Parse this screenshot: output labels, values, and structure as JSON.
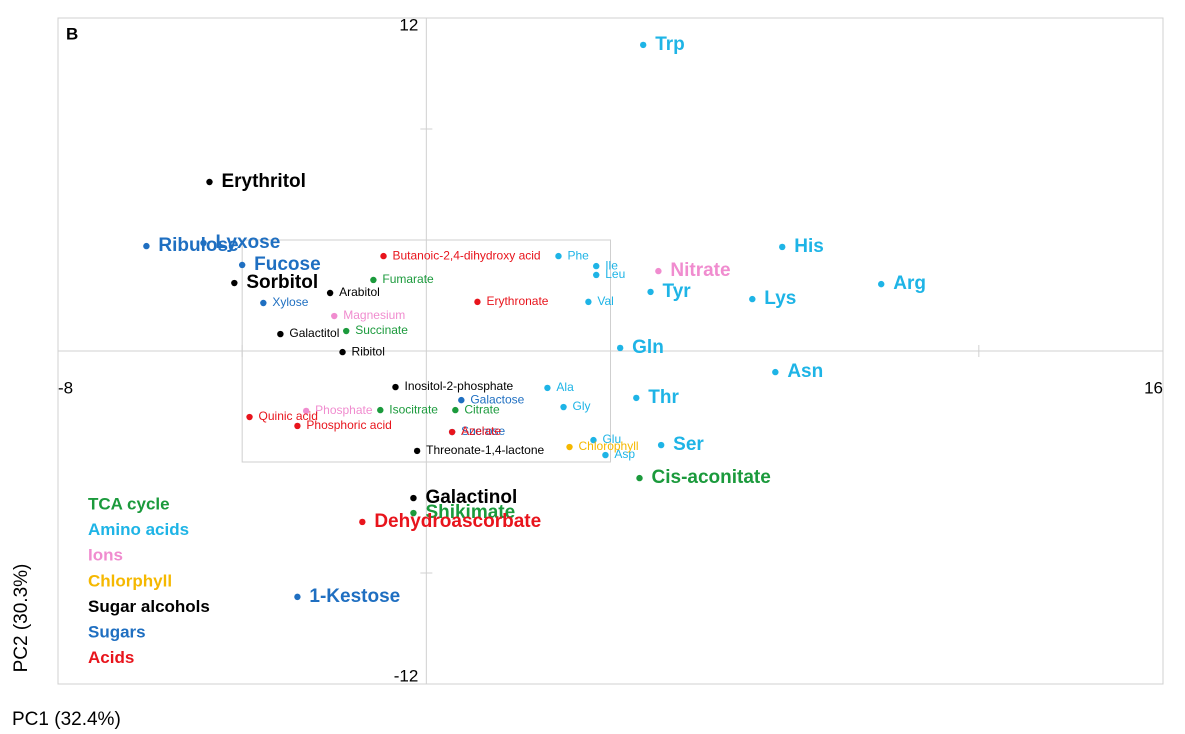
{
  "chart_data": {
    "type": "scatter",
    "panel_label": "B",
    "x_label": "PC1 (32.4%)",
    "y_label": "PC2 (30.3%)",
    "xlim": [
      -8,
      16
    ],
    "ylim": [
      -12,
      12
    ],
    "xticks": [
      -8,
      16
    ],
    "yticks": [
      12,
      -12
    ],
    "xminor_ticks": [
      -4,
      4,
      12
    ],
    "yminor_ticks": [
      8,
      -8
    ],
    "zoom_box": {
      "xlim": [
        -4,
        4
      ],
      "ylim": [
        -4,
        4
      ]
    },
    "series": [
      {
        "name": "TCA cycle",
        "color": "#1b9a3c",
        "labels": [
          "Cis-aconitate",
          "Shikimate",
          "Fumarate",
          "Succinate",
          "Isocitrate",
          "Citrate"
        ],
        "x": [
          4.63,
          -0.28,
          -1.15,
          -1.74,
          -1.0,
          0.63
        ],
        "y": [
          -4.58,
          -5.84,
          2.56,
          0.72,
          -2.13,
          -2.13
        ],
        "size": [
          "large",
          "large",
          "small",
          "small",
          "small",
          "small"
        ]
      },
      {
        "name": "Amino acids",
        "color": "#1eb4e6",
        "labels": [
          "Trp",
          "His",
          "Arg",
          "Tyr",
          "Lys",
          "Gln",
          "Asn",
          "Thr",
          "Ser",
          "Phe",
          "Ile",
          "Leu",
          "Val",
          "Ala",
          "Gly",
          "Glu",
          "Asp"
        ],
        "x": [
          4.71,
          7.73,
          9.88,
          4.87,
          7.08,
          4.21,
          7.58,
          4.56,
          5.1,
          2.87,
          3.69,
          3.69,
          3.52,
          2.63,
          2.98,
          3.63,
          3.89
        ],
        "y": [
          11.03,
          3.75,
          2.41,
          2.13,
          1.87,
          0.11,
          -0.76,
          -1.69,
          -3.39,
          3.42,
          3.06,
          2.74,
          1.77,
          -1.33,
          -2.02,
          -3.21,
          -3.75
        ],
        "size": [
          "large",
          "large",
          "large",
          "large",
          "large",
          "large",
          "large",
          "large",
          "large",
          "small",
          "small",
          "small",
          "small",
          "small",
          "small",
          "small",
          "small"
        ]
      },
      {
        "name": "Ions",
        "color": "#f08ccf",
        "labels": [
          "Nitrate",
          "Magnesium",
          "Phosphate"
        ],
        "x": [
          5.04,
          -2.0,
          -2.61
        ],
        "y": [
          2.88,
          1.26,
          -2.16
        ],
        "size": [
          "large",
          "small",
          "small"
        ]
      },
      {
        "name": "Chlorphyll",
        "color": "#f5b800",
        "labels": [
          "Chlorophyll"
        ],
        "x": [
          3.11
        ],
        "y": [
          -3.46
        ],
        "size": [
          "small"
        ]
      },
      {
        "name": "Sugar alcohols",
        "color": "#000000",
        "labels": [
          "Erythritol",
          "Sorbitol",
          "Galactinol",
          "Arabitol",
          "Galactitol",
          "Ribitol",
          "Inositol-2-phosphate",
          "Threonate-1,4-lactone"
        ],
        "x": [
          -4.71,
          -4.17,
          -0.28,
          -2.09,
          -3.17,
          -1.82,
          -0.67,
          -0.2
        ],
        "y": [
          6.09,
          2.45,
          -5.3,
          2.09,
          0.61,
          -0.04,
          -1.3,
          -3.6
        ],
        "size": [
          "large",
          "large",
          "large",
          "small",
          "small",
          "small",
          "small",
          "small"
        ]
      },
      {
        "name": "Sugars",
        "color": "#1f6fc1",
        "labels": [
          "Ribulose",
          "Lyxose",
          "Fucose",
          "1-Kestose",
          "Xylose",
          "Galactose",
          "Sucrose"
        ],
        "x": [
          -6.08,
          -4.84,
          -4.0,
          -2.8,
          -3.54,
          0.76,
          0.56
        ],
        "y": [
          3.78,
          3.89,
          3.1,
          -8.86,
          1.73,
          -1.77,
          -2.92
        ],
        "size": [
          "large",
          "large",
          "large",
          "large",
          "small",
          "small",
          "small"
        ]
      },
      {
        "name": "Acids",
        "color": "#e8141c",
        "labels": [
          "Dehydroascorbate",
          "Butanoic-2,4-dihydroxy acid",
          "Erythronate",
          "Quinic acid",
          "Phosphoric acid",
          "Azelate"
        ],
        "x": [
          -1.39,
          -0.93,
          1.11,
          -3.84,
          -2.8,
          0.56
        ],
        "y": [
          -6.16,
          3.42,
          1.77,
          -2.38,
          -2.7,
          -2.92
        ],
        "size": [
          "large",
          "small",
          "small",
          "small",
          "small",
          "small"
        ]
      }
    ]
  }
}
